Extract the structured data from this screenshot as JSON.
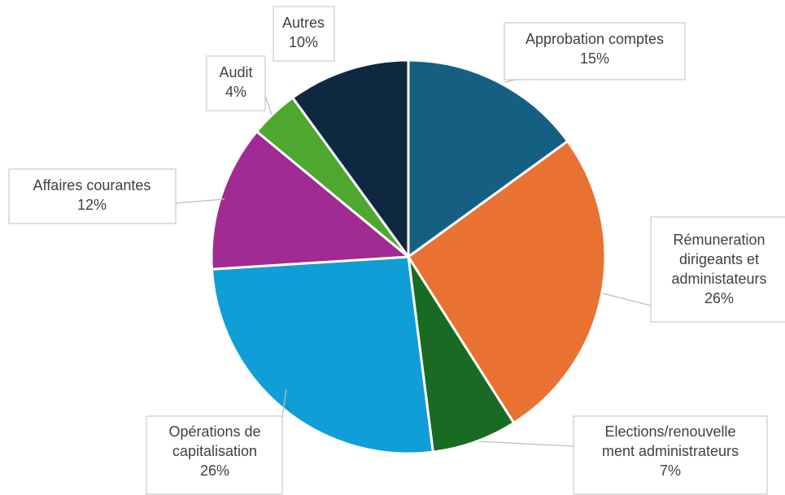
{
  "chart_data": {
    "type": "pie",
    "title": "",
    "slices": [
      {
        "label": [
          "Approbation comptes"
        ],
        "percent": "15%",
        "value": 15,
        "color": "#156082"
      },
      {
        "label": [
          "Rémuneration",
          "dirigeants et",
          "administateurs"
        ],
        "percent": "26%",
        "value": 26,
        "color": "#e97132"
      },
      {
        "label": [
          "Elections/renouvelle",
          "ment administrateurs"
        ],
        "percent": "7%",
        "value": 7,
        "color": "#196b24"
      },
      {
        "label": [
          "Opérations de",
          "capitalisation"
        ],
        "percent": "26%",
        "value": 26,
        "color": "#0f9ed5"
      },
      {
        "label": [
          "Affaires courantes"
        ],
        "percent": "12%",
        "value": 12,
        "color": "#a02b93"
      },
      {
        "label": [
          "Audit"
        ],
        "percent": "4%",
        "value": 4,
        "color": "#4ea72e"
      },
      {
        "label": [
          "Autres"
        ],
        "percent": "10%",
        "value": 10,
        "color": "#0e2841"
      }
    ],
    "start_angle_deg": 0,
    "direction": "clockwise",
    "slice_border_color": "#ffffff"
  }
}
